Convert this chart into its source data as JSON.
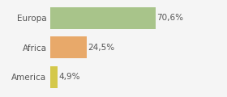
{
  "categories": [
    "America",
    "Africa",
    "Europa"
  ],
  "values": [
    4.9,
    24.5,
    70.6
  ],
  "bar_colors": [
    "#d4c84a",
    "#e8a96a",
    "#a8c48a"
  ],
  "labels": [
    "4,9%",
    "24,5%",
    "70,6%"
  ],
  "xlim": [
    0,
    100
  ],
  "background_color": "#f5f5f5",
  "bar_height": 0.75,
  "label_fontsize": 7.5,
  "tick_fontsize": 7.5
}
